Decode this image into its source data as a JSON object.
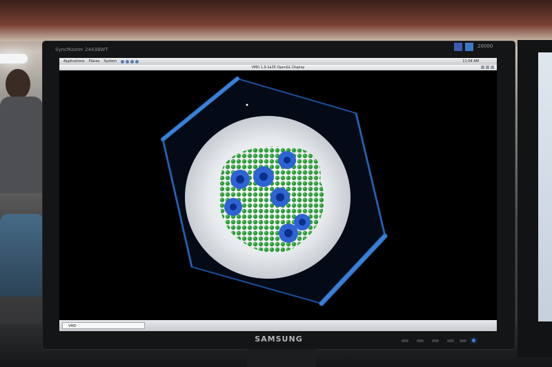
{
  "monitor": {
    "model_label": "SyncMaster 2443BWT",
    "brand": "SAMSUNG",
    "top_label": "20000"
  },
  "desktop": {
    "top_panel": {
      "menus": [
        "Applications",
        "Places",
        "System"
      ],
      "clock": "11:04 AM"
    },
    "vmd_window": {
      "title": "VMD 1.9.2a35 OpenGL Display"
    },
    "taskbar": {
      "items": [
        "VMD"
      ]
    }
  },
  "visual": {
    "background_color": "#000000",
    "box_edge_color": "#2f7fe6",
    "membrane_color": "#f2f2f2",
    "protein_green": "#2f9a3a",
    "protein_blue": "#2e63d4"
  }
}
